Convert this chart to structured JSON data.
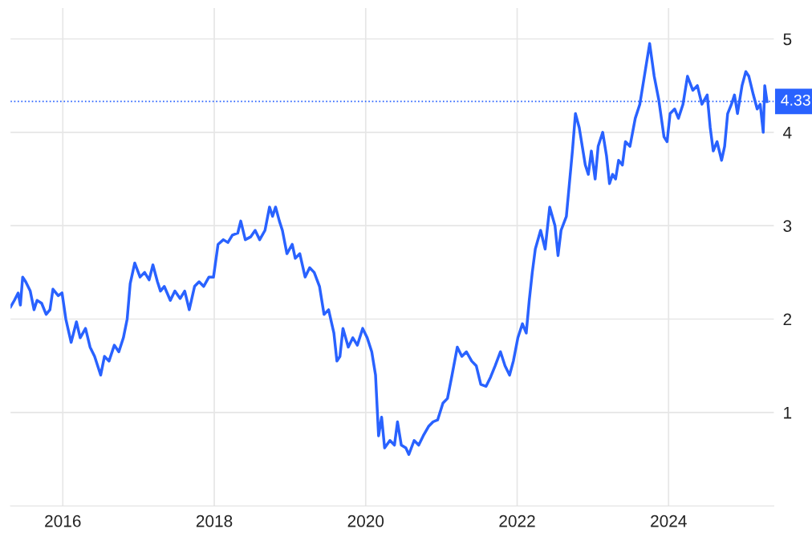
{
  "chart_data": {
    "type": "line",
    "x": [
      2015.31,
      2015.36,
      2015.41,
      2015.44,
      2015.47,
      2015.51,
      2015.57,
      2015.62,
      2015.66,
      2015.72,
      2015.78,
      2015.83,
      2015.87,
      2015.94,
      2015.99,
      2016.04,
      2016.11,
      2016.18,
      2016.23,
      2016.3,
      2016.36,
      2016.42,
      2016.5,
      2016.55,
      2016.61,
      2016.68,
      2016.74,
      2016.8,
      2016.85,
      2016.89,
      2016.95,
      2017.02,
      2017.08,
      2017.14,
      2017.19,
      2017.25,
      2017.29,
      2017.34,
      2017.42,
      2017.48,
      2017.55,
      2017.61,
      2017.67,
      2017.74,
      2017.8,
      2017.86,
      2017.93,
      2017.99,
      2018.05,
      2018.12,
      2018.18,
      2018.24,
      2018.31,
      2018.35,
      2018.41,
      2018.48,
      2018.54,
      2018.6,
      2018.67,
      2018.73,
      2018.77,
      2018.81,
      2018.86,
      2018.9,
      2018.96,
      2019.03,
      2019.07,
      2019.13,
      2019.2,
      2019.26,
      2019.32,
      2019.39,
      2019.45,
      2019.51,
      2019.58,
      2019.62,
      2019.66,
      2019.7,
      2019.77,
      2019.83,
      2019.89,
      2019.96,
      2020.02,
      2020.08,
      2020.13,
      2020.17,
      2020.21,
      2020.25,
      2020.32,
      2020.38,
      2020.42,
      2020.47,
      2020.53,
      2020.57,
      2020.64,
      2020.7,
      2020.76,
      2020.83,
      2020.89,
      2020.95,
      2021.02,
      2021.08,
      2021.14,
      2021.21,
      2021.27,
      2021.33,
      2021.4,
      2021.46,
      2021.52,
      2021.59,
      2021.65,
      2021.71,
      2021.78,
      2021.84,
      2021.9,
      2021.95,
      2022.01,
      2022.07,
      2022.12,
      2022.16,
      2022.2,
      2022.24,
      2022.31,
      2022.37,
      2022.43,
      2022.5,
      2022.54,
      2022.58,
      2022.65,
      2022.69,
      2022.73,
      2022.77,
      2022.82,
      2022.86,
      2022.9,
      2022.94,
      2022.98,
      2023.03,
      2023.07,
      2023.13,
      2023.18,
      2023.22,
      2023.26,
      2023.3,
      2023.34,
      2023.39,
      2023.43,
      2023.49,
      2023.56,
      2023.62,
      2023.68,
      2023.75,
      2023.81,
      2023.87,
      2023.94,
      2023.98,
      2024.02,
      2024.08,
      2024.13,
      2024.19,
      2024.25,
      2024.32,
      2024.38,
      2024.44,
      2024.51,
      2024.55,
      2024.59,
      2024.64,
      2024.7,
      2024.74,
      2024.78,
      2024.83,
      2024.87,
      2024.91,
      2024.97,
      2025.02,
      2025.06,
      2025.12,
      2025.17,
      2025.21,
      2025.25,
      2025.27,
      2025.3
    ],
    "series": [
      {
        "color": "#2962ff",
        "values": [
          2.13,
          2.2,
          2.28,
          2.15,
          2.45,
          2.4,
          2.3,
          2.1,
          2.2,
          2.17,
          2.05,
          2.1,
          2.32,
          2.25,
          2.28,
          2.0,
          1.75,
          1.97,
          1.8,
          1.9,
          1.7,
          1.6,
          1.4,
          1.6,
          1.55,
          1.72,
          1.65,
          1.8,
          2.0,
          2.38,
          2.6,
          2.45,
          2.5,
          2.42,
          2.58,
          2.4,
          2.3,
          2.35,
          2.2,
          2.3,
          2.22,
          2.3,
          2.1,
          2.35,
          2.4,
          2.35,
          2.45,
          2.45,
          2.8,
          2.85,
          2.82,
          2.9,
          2.92,
          3.05,
          2.85,
          2.88,
          2.95,
          2.85,
          2.95,
          3.2,
          3.1,
          3.2,
          3.05,
          2.95,
          2.7,
          2.8,
          2.65,
          2.7,
          2.45,
          2.55,
          2.5,
          2.35,
          2.05,
          2.1,
          1.85,
          1.55,
          1.6,
          1.9,
          1.7,
          1.8,
          1.72,
          1.9,
          1.8,
          1.65,
          1.4,
          0.75,
          0.95,
          0.62,
          0.7,
          0.65,
          0.9,
          0.65,
          0.62,
          0.55,
          0.7,
          0.65,
          0.75,
          0.85,
          0.9,
          0.92,
          1.1,
          1.15,
          1.4,
          1.7,
          1.6,
          1.65,
          1.55,
          1.5,
          1.3,
          1.28,
          1.38,
          1.5,
          1.65,
          1.5,
          1.4,
          1.55,
          1.8,
          1.95,
          1.85,
          2.2,
          2.5,
          2.75,
          2.95,
          2.75,
          3.2,
          3.0,
          2.68,
          2.95,
          3.1,
          3.45,
          3.8,
          4.2,
          4.05,
          3.85,
          3.65,
          3.55,
          3.8,
          3.5,
          3.85,
          4.0,
          3.75,
          3.45,
          3.55,
          3.5,
          3.7,
          3.65,
          3.9,
          3.85,
          4.15,
          4.3,
          4.6,
          4.95,
          4.6,
          4.35,
          3.95,
          3.9,
          4.2,
          4.25,
          4.15,
          4.3,
          4.6,
          4.45,
          4.5,
          4.3,
          4.4,
          4.05,
          3.8,
          3.9,
          3.7,
          3.85,
          4.2,
          4.3,
          4.4,
          4.2,
          4.5,
          4.65,
          4.6,
          4.4,
          4.25,
          4.3,
          4.0,
          4.5,
          4.33
        ]
      }
    ],
    "xlim": [
      2015.31,
      2025.39
    ],
    "xticks": [
      2016,
      2018,
      2020,
      2022,
      2024
    ],
    "ylim": [
      0,
      5.33
    ],
    "yticks": [
      1,
      2,
      3,
      4,
      5
    ],
    "grid": true,
    "ref_lines": [
      {
        "axis": "y",
        "value": 4.33,
        "label": "4.33",
        "color": "#2962ff",
        "line_style": "dotted"
      }
    ]
  }
}
